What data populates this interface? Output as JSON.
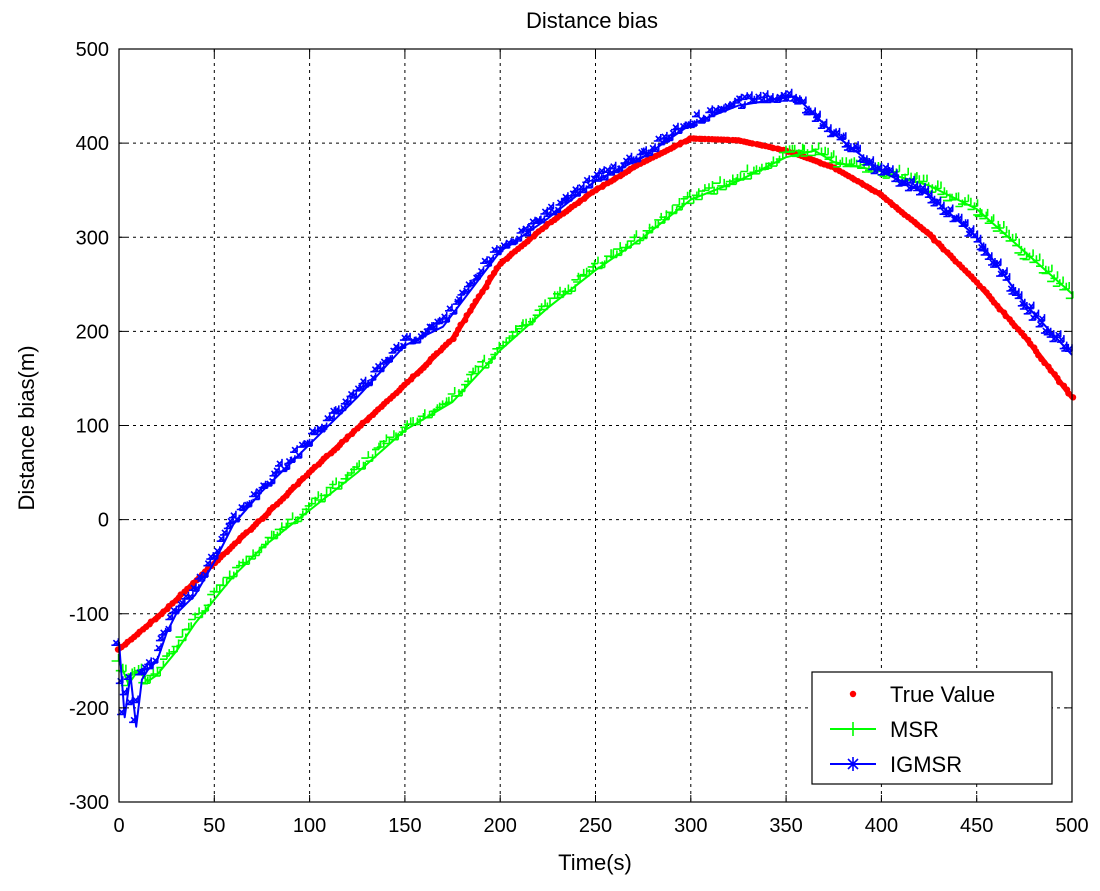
{
  "chart_data": {
    "type": "line",
    "title": "Distance bias",
    "xlabel": "Time(s)",
    "ylabel": "Distance bias(m)",
    "xlim": [
      0,
      500
    ],
    "ylim": [
      -300,
      500
    ],
    "xticks": [
      0,
      50,
      100,
      150,
      200,
      250,
      300,
      350,
      400,
      450,
      500
    ],
    "yticks": [
      -300,
      -200,
      -100,
      0,
      100,
      200,
      300,
      400,
      500
    ],
    "grid": true,
    "legend": "bottom-right",
    "series": [
      {
        "name": "True Value",
        "color": "#ff0000",
        "marker": "dot",
        "x": [
          0,
          25,
          50,
          75,
          100,
          125,
          150,
          175,
          200,
          225,
          250,
          275,
          300,
          325,
          350,
          375,
          400,
          425,
          450,
          475,
          500
        ],
        "y": [
          -138,
          -95,
          -46,
          1,
          50,
          97,
          143,
          192,
          272,
          314,
          350,
          380,
          405,
          403,
          392,
          374,
          345,
          303,
          252,
          195,
          130
        ]
      },
      {
        "name": "MSR",
        "color": "#00ff00",
        "marker": "plus",
        "x": [
          0,
          5,
          10,
          15,
          20,
          30,
          40,
          50,
          60,
          75,
          100,
          125,
          150,
          175,
          200,
          225,
          250,
          275,
          300,
          325,
          350,
          365,
          375,
          400,
          425,
          450,
          475,
          500
        ],
        "y": [
          -150,
          -175,
          -160,
          -172,
          -165,
          -140,
          -110,
          -85,
          -60,
          -30,
          10,
          50,
          95,
          125,
          180,
          225,
          265,
          300,
          340,
          360,
          385,
          392,
          380,
          370,
          355,
          330,
          285,
          240
        ]
      },
      {
        "name": "IGMSR",
        "color": "#0000ff",
        "marker": "star",
        "x": [
          0,
          3,
          6,
          9,
          12,
          15,
          20,
          25,
          30,
          40,
          50,
          60,
          75,
          100,
          125,
          150,
          170,
          185,
          200,
          225,
          250,
          275,
          300,
          325,
          340,
          355,
          365,
          375,
          400,
          425,
          450,
          475,
          500
        ],
        "y": [
          -130,
          -210,
          -165,
          -220,
          -170,
          -160,
          -150,
          -120,
          -100,
          -80,
          -45,
          -5,
          30,
          80,
          130,
          185,
          205,
          245,
          285,
          320,
          360,
          385,
          420,
          440,
          445,
          450,
          430,
          410,
          370,
          345,
          300,
          230,
          175
        ]
      }
    ]
  }
}
